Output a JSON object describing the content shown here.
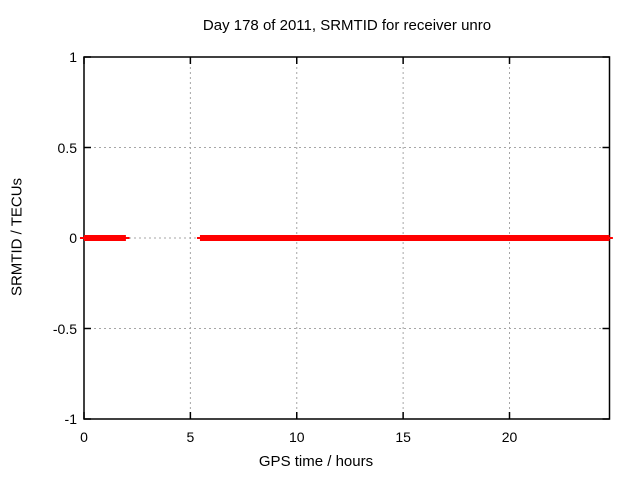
{
  "chart_data": {
    "type": "line",
    "title": "Day 178 of 2011, SRMTID for receiver unro",
    "xlabel": "GPS time / hours",
    "ylabel": "SRMTID / TECUs",
    "xlim": [
      0,
      24.7
    ],
    "ylim": [
      -1,
      1
    ],
    "xticks": [
      0,
      5,
      10,
      15,
      20
    ],
    "xtick_labels": [
      "0",
      "5",
      "10",
      "15",
      "20"
    ],
    "yticks": [
      1,
      0.5,
      0,
      -0.5,
      -1
    ],
    "ytick_labels": [
      "1",
      "0.5",
      "0",
      "-0.5",
      "-1"
    ],
    "grid": true,
    "legend": false,
    "colors": {
      "line": "#ff0000",
      "grid": "#a6a6a6",
      "axis": "#000000",
      "text": "#000000",
      "background": "#ffffff"
    },
    "series": [
      {
        "name": "SRMTID",
        "color": "#ff0000",
        "y_value": 0,
        "segments": [
          {
            "thin_start": -0.19,
            "thick_start": 0,
            "thick_end": 1.97,
            "thin_end": 2.14
          },
          {
            "thin_start": 5.31,
            "thick_start": 5.45,
            "thick_end": 24.7,
            "thin_end": 24.86
          }
        ]
      }
    ]
  }
}
